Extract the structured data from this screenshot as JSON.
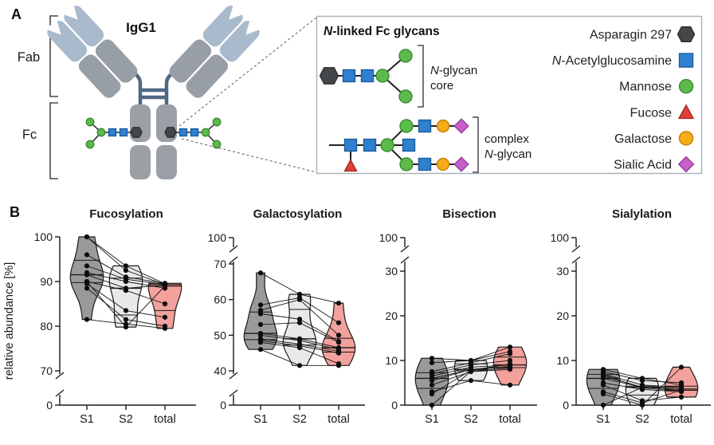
{
  "panel_a": {
    "label": "A",
    "antibody_title": "IgG1",
    "fab_label": "Fab",
    "fc_label": "Fc",
    "inset": {
      "title": "N-linked Fc glycans",
      "core_label": [
        "N-glycan",
        "core"
      ],
      "complex_label": [
        "complex",
        "N-glycan"
      ]
    },
    "legend": [
      {
        "label": "Asparagin 297",
        "symbol": "hexagon",
        "color": "asparagine"
      },
      {
        "label": "N-Acetylglucosamine",
        "symbol": "square",
        "color": "glcnac"
      },
      {
        "label": "Mannose",
        "symbol": "circle",
        "color": "mannose"
      },
      {
        "label": "Fucose",
        "symbol": "triangle",
        "color": "fucose"
      },
      {
        "label": "Galactose",
        "symbol": "circle",
        "color": "galactose"
      },
      {
        "label": "Sialic Acid",
        "symbol": "diamond",
        "color": "sialic"
      }
    ],
    "colors": {
      "asparagine": {
        "fill": "#434749",
        "stroke": "#2e3133"
      },
      "glcnac": {
        "fill": "#2f80d0",
        "stroke": "#1c5c9c"
      },
      "mannose": {
        "fill": "#5cbb4b",
        "stroke": "#3a8c33"
      },
      "fucose": {
        "fill": "#e04038",
        "stroke": "#a52a24"
      },
      "galactose": {
        "fill": "#f8ac19",
        "stroke": "#c57f0b"
      },
      "sialic": {
        "fill": "#c760c9",
        "stroke": "#94409a"
      }
    }
  },
  "panel_b": {
    "label": "B"
  },
  "chart_data": [
    {
      "type": "violin-scatter",
      "title": "Fucosylation",
      "ylabel": "relative abundance [%]",
      "categories": [
        "S1",
        "S2",
        "total"
      ],
      "axis": {
        "top_tick": null,
        "ticks": [
          100,
          90,
          80,
          70
        ],
        "range": [
          70,
          100
        ],
        "bottom_zero": "stub"
      },
      "violin_colors": [
        "#9a9a9a",
        "#e9e9e9",
        "#f2a19d"
      ],
      "point_color": "#0d0d0d",
      "series": [
        [
          100,
          93.5,
          89.5
        ],
        [
          100,
          92.5,
          89.3
        ],
        [
          96,
          91,
          89.6
        ],
        [
          93.5,
          90.5,
          89.4
        ],
        [
          92,
          90,
          88.5
        ],
        [
          91.5,
          88.5,
          89.2
        ],
        [
          90,
          88,
          85
        ],
        [
          89.5,
          83.5,
          82
        ],
        [
          88.5,
          81.5,
          80
        ],
        [
          81.5,
          80.5,
          79.5
        ],
        [
          90,
          79.8,
          89
        ]
      ]
    },
    {
      "type": "violin-scatter",
      "title": "Galactosylation",
      "ylabel": "",
      "categories": [
        "S1",
        "S2",
        "total"
      ],
      "axis": {
        "top_tick": 100,
        "ticks": [
          70,
          60,
          50,
          40
        ],
        "range": [
          40,
          70
        ],
        "bottom_zero": "stub"
      },
      "violin_colors": [
        "#9a9a9a",
        "#e9e9e9",
        "#f2a19d"
      ],
      "point_color": "#0d0d0d",
      "series": [
        [
          67.5,
          61.5,
          59
        ],
        [
          58.5,
          60.5,
          53.5
        ],
        [
          57,
          60,
          50
        ],
        [
          56,
          54.5,
          48.3
        ],
        [
          53,
          53.5,
          48
        ],
        [
          50.5,
          49,
          46.5
        ],
        [
          50,
          48.5,
          46
        ],
        [
          49,
          47.5,
          45.5
        ],
        [
          48.5,
          47,
          45
        ],
        [
          48,
          46.5,
          42
        ],
        [
          46,
          41.5,
          41.5
        ]
      ]
    },
    {
      "type": "violin-scatter",
      "title": "Bisection",
      "ylabel": "",
      "categories": [
        "S1",
        "S2",
        "total"
      ],
      "axis": {
        "top_tick": 100,
        "ticks": [
          30,
          20,
          10,
          0
        ],
        "range": [
          0,
          30
        ],
        "bottom_zero": "axis"
      },
      "violin_colors": [
        "#9a9a9a",
        "#e9e9e9",
        "#f2a19d"
      ],
      "point_color": "#0d0d0d",
      "series": [
        [
          10.5,
          10,
          13
        ],
        [
          9.5,
          10,
          12
        ],
        [
          7.5,
          9.5,
          11.5
        ],
        [
          7,
          9,
          10
        ],
        [
          6.5,
          8.5,
          9
        ],
        [
          6,
          8,
          8.7
        ],
        [
          5.5,
          8,
          8.5
        ],
        [
          4.5,
          7.5,
          8
        ],
        [
          3,
          5.5,
          4.5
        ],
        [
          2.5,
          7.8,
          9.2
        ],
        [
          0,
          7.6,
          8.3
        ]
      ]
    },
    {
      "type": "violin-scatter",
      "title": "Sialylation",
      "ylabel": "",
      "categories": [
        "S1",
        "S2",
        "total"
      ],
      "axis": {
        "top_tick": 100,
        "ticks": [
          30,
          20,
          10,
          0
        ],
        "range": [
          0,
          30
        ],
        "bottom_zero": "axis"
      },
      "violin_colors": [
        "#9a9a9a",
        "#e9e9e9",
        "#f2a19d"
      ],
      "point_color": "#0d0d0d",
      "series": [
        [
          8,
          6,
          4.5
        ],
        [
          7.5,
          5.5,
          5
        ],
        [
          7,
          4.5,
          4
        ],
        [
          6.5,
          4,
          3.5
        ],
        [
          6,
          4,
          3.6
        ],
        [
          5,
          3.5,
          3
        ],
        [
          4.5,
          1,
          1.8
        ],
        [
          3,
          0.5,
          3.4
        ],
        [
          2.5,
          0,
          8.5
        ],
        [
          0,
          4,
          4
        ],
        [
          6.8,
          3.8,
          3.2
        ]
      ]
    }
  ]
}
